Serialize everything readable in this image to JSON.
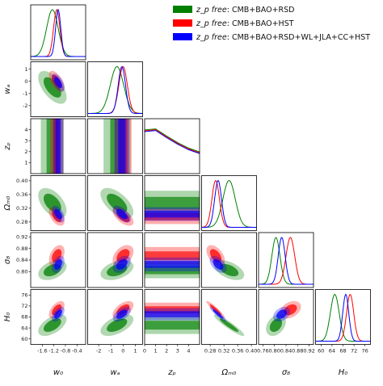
{
  "chart_data": {
    "type": "triangle",
    "parameters": [
      {
        "key": "w0",
        "label": "w₀",
        "ticks": [
          "-1.6",
          "-1.2",
          "-0.8",
          "-0.4"
        ],
        "range": [
          -2.0,
          -0.1
        ]
      },
      {
        "key": "wa",
        "label": "wₐ",
        "ticks": [
          "-2",
          "-1",
          "0",
          "1"
        ],
        "range": [
          -2.9,
          1.6
        ]
      },
      {
        "key": "zp",
        "label": "zₚ",
        "ticks": [
          "0",
          "1",
          "2",
          "3",
          "4"
        ],
        "range": [
          0,
          5
        ]
      },
      {
        "key": "Om",
        "label": "Ωₘ₀",
        "ticks": [
          "0.28",
          "0.32",
          "0.36",
          "0.40"
        ],
        "range": [
          0.255,
          0.415
        ]
      },
      {
        "key": "s8",
        "label": "σ₈",
        "ticks": [
          "0.76",
          "0.80",
          "0.84",
          "0.88",
          "0.92"
        ],
        "range": [
          0.745,
          0.935
        ]
      },
      {
        "key": "H0",
        "label": "H₀",
        "ticks": [
          "60",
          "64",
          "68",
          "72",
          "76"
        ],
        "range": [
          58,
          78
        ]
      }
    ],
    "y_tick_labels": {
      "wa": [
        "1",
        "0",
        "-1",
        "-2"
      ],
      "zp": [
        "4",
        "3",
        "2",
        "1"
      ],
      "Om": [
        "0.40",
        "0.36",
        "0.32",
        "0.28"
      ],
      "s8": [
        "0.92",
        "0.88",
        "0.84",
        "0.80"
      ],
      "H0": [
        "76",
        "72",
        "68",
        "64",
        "60"
      ]
    },
    "series": [
      {
        "name_prefix": "z_p free",
        "name_suffix": ": CMB+BAO+RSD",
        "color": "#007f00",
        "means": {
          "w0": -1.25,
          "wa": -0.5,
          "Om": 0.335,
          "s8": 0.805,
          "H0": 65.0
        },
        "sds": {
          "w0": 0.2,
          "wa": 0.55,
          "Om": 0.018,
          "s8": 0.014,
          "H0": 1.6
        }
      },
      {
        "name_prefix": "z_p free",
        "name_suffix": ": CMB+BAO+HST",
        "color": "#ff0000",
        "means": {
          "w0": -1.1,
          "wa": 0.0,
          "Om": 0.296,
          "s8": 0.855,
          "H0": 70.6
        },
        "sds": {
          "w0": 0.11,
          "wa": 0.35,
          "Om": 0.011,
          "s8": 0.015,
          "H0": 1.3
        }
      },
      {
        "name_prefix": "z_p free",
        "name_suffix": ": CMB+BAO+RSD+WL+JLA+CC+HST",
        "color": "#0000ff",
        "means": {
          "w0": -1.05,
          "wa": -0.1,
          "Om": 0.303,
          "s8": 0.825,
          "H0": 69.0
        },
        "sds": {
          "w0": 0.09,
          "wa": 0.3,
          "Om": 0.01,
          "s8": 0.012,
          "H0": 1.1
        }
      }
    ],
    "correlations": {
      "w0|wa": -0.6,
      "w0|Om": -0.5,
      "w0|s8": 0.4,
      "w0|H0": 0.55,
      "wa|Om": -0.6,
      "wa|s8": 0.4,
      "wa|H0": 0.55,
      "Om|s8": -0.5,
      "Om|H0": -0.93,
      "s8|H0": 0.35
    },
    "legend_position": "top-right"
  },
  "colors": {
    "green": "#007f00",
    "red": "#ff0000",
    "blue": "#0000ff"
  }
}
